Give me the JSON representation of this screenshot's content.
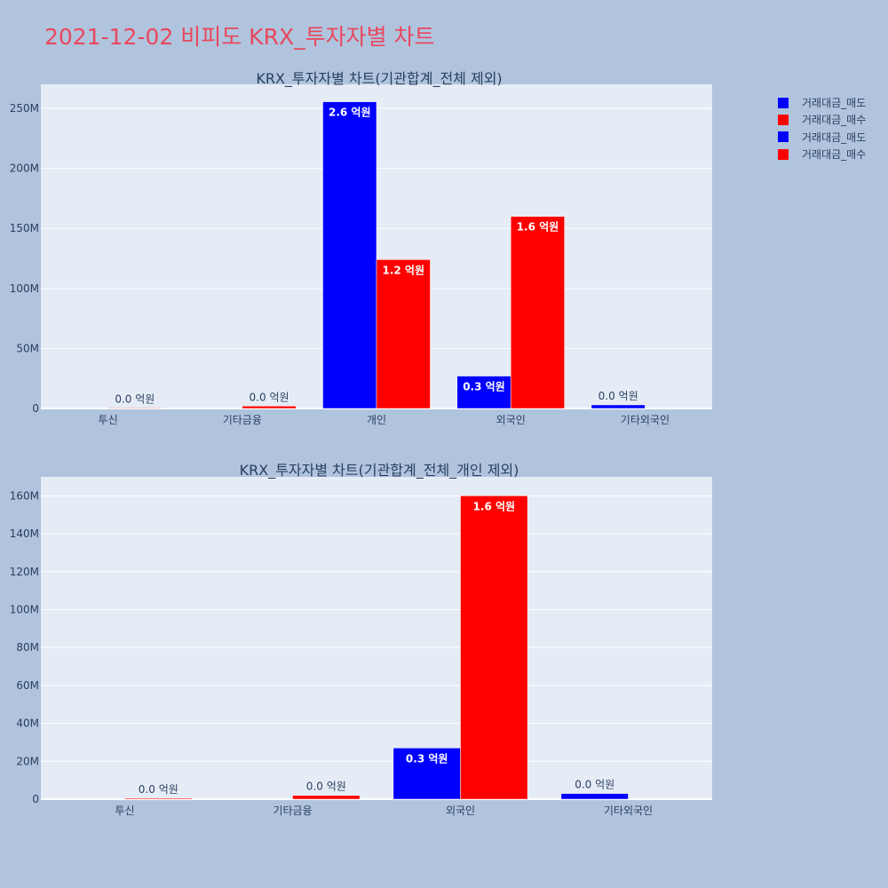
{
  "page_title": "2021-12-02 비피도 KRX_투자자별 차트",
  "legend": [
    {
      "label": "거래대금_매도",
      "color": "#0000ff"
    },
    {
      "label": "거래대금_매수",
      "color": "#ff0000"
    },
    {
      "label": "거래대금_매도",
      "color": "#0000ff"
    },
    {
      "label": "거래대금_매수",
      "color": "#ff0000"
    }
  ],
  "chart_data": [
    {
      "type": "bar",
      "title": "KRX_투자자별 차트(기관합계_전체 제외)",
      "categories": [
        "투신",
        "기타금융",
        "개인",
        "외국인",
        "기타외국인"
      ],
      "ylim": [
        0,
        270000000
      ],
      "yticks": [
        0,
        50000000,
        100000000,
        150000000,
        200000000,
        250000000
      ],
      "ytick_labels": [
        "0",
        "50M",
        "100M",
        "150M",
        "200M",
        "250M"
      ],
      "grid": true,
      "legend_position": "top-right",
      "series": [
        {
          "name": "거래대금_매도",
          "color": "#0000ff",
          "values": [
            0,
            0,
            255500000,
            27000000,
            3000000
          ],
          "labels": [
            "",
            "",
            "2.6 억원",
            "0.3 억원",
            "0.0 억원"
          ]
        },
        {
          "name": "거래대금_매수",
          "color": "#ff0000",
          "values": [
            500000,
            2000000,
            124000000,
            160000000,
            0
          ],
          "labels": [
            "0.0 억원",
            "0.0 억원",
            "1.2 억원",
            "1.6 억원",
            ""
          ]
        }
      ]
    },
    {
      "type": "bar",
      "title": "KRX_투자자별 차트(기관합계_전체_개인 제외)",
      "categories": [
        "투신",
        "기타금융",
        "외국인",
        "기타외국인"
      ],
      "ylim": [
        0,
        170000000
      ],
      "yticks": [
        0,
        20000000,
        40000000,
        60000000,
        80000000,
        100000000,
        120000000,
        140000000,
        160000000
      ],
      "ytick_labels": [
        "0",
        "20M",
        "40M",
        "60M",
        "80M",
        "100M",
        "120M",
        "140M",
        "160M"
      ],
      "grid": true,
      "legend_position": "top-right",
      "series": [
        {
          "name": "거래대금_매도",
          "color": "#0000ff",
          "values": [
            0,
            0,
            27000000,
            3000000
          ],
          "labels": [
            "",
            "",
            "0.3 억원",
            "0.0 억원"
          ]
        },
        {
          "name": "거래대금_매수",
          "color": "#ff0000",
          "values": [
            500000,
            2000000,
            160000000,
            0
          ],
          "labels": [
            "0.0 억원",
            "0.0 억원",
            "1.6 억원",
            ""
          ]
        }
      ]
    }
  ]
}
